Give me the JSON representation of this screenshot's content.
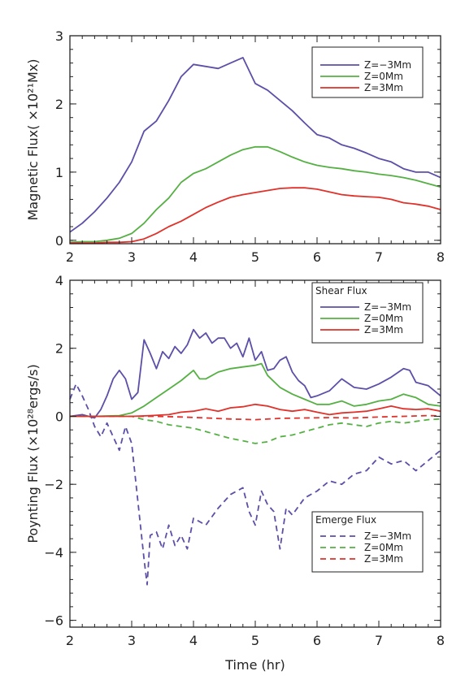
{
  "chart_data": [
    {
      "type": "line",
      "xlabel": "",
      "ylabel": "Magnetic Flux( ×10²¹Mx)",
      "xlim": [
        2,
        8
      ],
      "ylim": [
        -0.05,
        3.0
      ],
      "x_ticks": [
        "2",
        "3",
        "4",
        "5",
        "6",
        "7",
        "8"
      ],
      "y_ticks": [
        "0",
        "1",
        "2",
        "3"
      ],
      "x_tick_values": [
        2,
        3,
        4,
        5,
        6,
        7,
        8
      ],
      "y_tick_values": [
        0,
        1,
        2,
        3
      ],
      "legend": {
        "title": "",
        "placement": "top-right"
      },
      "series": [
        {
          "name": "Z=−3Mm",
          "color": "#5b4fa8",
          "dash": "solid",
          "x": [
            2.0,
            2.2,
            2.4,
            2.6,
            2.8,
            3.0,
            3.2,
            3.4,
            3.6,
            3.8,
            4.0,
            4.2,
            4.4,
            4.6,
            4.8,
            5.0,
            5.2,
            5.4,
            5.6,
            5.8,
            6.0,
            6.2,
            6.4,
            6.6,
            6.8,
            7.0,
            7.2,
            7.4,
            7.6,
            7.8,
            8.0
          ],
          "y": [
            0.12,
            0.25,
            0.42,
            0.62,
            0.85,
            1.15,
            1.6,
            1.75,
            2.05,
            2.4,
            2.58,
            2.55,
            2.52,
            2.6,
            2.68,
            2.3,
            2.2,
            2.05,
            1.9,
            1.72,
            1.55,
            1.5,
            1.4,
            1.35,
            1.28,
            1.2,
            1.15,
            1.05,
            1.0,
            1.0,
            0.92
          ]
        },
        {
          "name": "Z=0Mm",
          "color": "#55b043",
          "dash": "solid",
          "x": [
            2.0,
            2.2,
            2.4,
            2.6,
            2.8,
            3.0,
            3.2,
            3.4,
            3.6,
            3.8,
            4.0,
            4.2,
            4.4,
            4.6,
            4.8,
            5.0,
            5.2,
            5.4,
            5.6,
            5.8,
            6.0,
            6.2,
            6.4,
            6.6,
            6.8,
            7.0,
            7.2,
            7.4,
            7.6,
            7.8,
            8.0
          ],
          "y": [
            -0.03,
            -0.02,
            -0.02,
            0.0,
            0.03,
            0.1,
            0.25,
            0.45,
            0.62,
            0.85,
            0.98,
            1.05,
            1.15,
            1.25,
            1.33,
            1.37,
            1.37,
            1.3,
            1.22,
            1.15,
            1.1,
            1.07,
            1.05,
            1.02,
            1.0,
            0.97,
            0.95,
            0.92,
            0.88,
            0.83,
            0.78
          ]
        },
        {
          "name": "Z=3Mm",
          "color": "#e0312a",
          "dash": "solid",
          "x": [
            2.0,
            2.2,
            2.4,
            2.6,
            2.8,
            3.0,
            3.2,
            3.4,
            3.6,
            3.8,
            4.0,
            4.2,
            4.4,
            4.6,
            4.8,
            5.0,
            5.2,
            5.4,
            5.6,
            5.8,
            6.0,
            6.2,
            6.4,
            6.6,
            6.8,
            7.0,
            7.2,
            7.4,
            7.6,
            7.8,
            8.0
          ],
          "y": [
            -0.04,
            -0.04,
            -0.04,
            -0.03,
            -0.03,
            -0.02,
            0.02,
            0.1,
            0.2,
            0.28,
            0.38,
            0.48,
            0.56,
            0.63,
            0.67,
            0.7,
            0.73,
            0.76,
            0.77,
            0.77,
            0.75,
            0.71,
            0.67,
            0.65,
            0.64,
            0.63,
            0.6,
            0.55,
            0.53,
            0.5,
            0.45
          ]
        }
      ]
    },
    {
      "type": "line",
      "xlabel": "Time (hr)",
      "ylabel": "Poynting Flux (×10²⁸ergs/s)",
      "xlim": [
        2,
        8
      ],
      "ylim": [
        -6.2,
        4.0
      ],
      "x_ticks": [
        "2",
        "3",
        "4",
        "5",
        "6",
        "7",
        "8"
      ],
      "y_ticks": [
        "−6",
        "−4",
        "−2",
        "0",
        "2",
        "4"
      ],
      "x_tick_values": [
        2,
        3,
        4,
        5,
        6,
        7,
        8
      ],
      "y_tick_values": [
        -6,
        -4,
        -2,
        0,
        2,
        4
      ],
      "legends": [
        {
          "title": "Shear Flux",
          "placement": "top-right",
          "series": [
            0,
            1,
            2
          ]
        },
        {
          "title": "Emerge Flux",
          "placement": "bottom-right",
          "series": [
            3,
            4,
            5
          ]
        }
      ],
      "series": [
        {
          "name": "Z=−3Mm",
          "color": "#5b4fa8",
          "dash": "solid",
          "x": [
            2.0,
            2.2,
            2.4,
            2.5,
            2.6,
            2.7,
            2.8,
            2.9,
            3.0,
            3.1,
            3.2,
            3.3,
            3.4,
            3.5,
            3.6,
            3.7,
            3.8,
            3.9,
            4.0,
            4.1,
            4.2,
            4.3,
            4.4,
            4.5,
            4.6,
            4.7,
            4.8,
            4.9,
            5.0,
            5.1,
            5.2,
            5.3,
            5.4,
            5.5,
            5.6,
            5.7,
            5.8,
            5.9,
            6.0,
            6.2,
            6.4,
            6.6,
            6.8,
            7.0,
            7.2,
            7.4,
            7.5,
            7.6,
            7.8,
            8.0
          ],
          "y": [
            0.0,
            0.05,
            -0.05,
            0.2,
            0.6,
            1.1,
            1.35,
            1.1,
            0.5,
            0.7,
            2.25,
            1.85,
            1.4,
            1.9,
            1.7,
            2.05,
            1.85,
            2.1,
            2.55,
            2.3,
            2.45,
            2.15,
            2.3,
            2.3,
            2.0,
            2.15,
            1.75,
            2.3,
            1.65,
            1.9,
            1.35,
            1.4,
            1.65,
            1.75,
            1.3,
            1.05,
            0.9,
            0.55,
            0.6,
            0.75,
            1.1,
            0.85,
            0.8,
            0.95,
            1.15,
            1.4,
            1.35,
            1.0,
            0.9,
            0.6
          ]
        },
        {
          "name": "Z=0Mm",
          "color": "#55b043",
          "dash": "solid",
          "x": [
            2.0,
            2.4,
            2.8,
            3.0,
            3.2,
            3.4,
            3.6,
            3.8,
            4.0,
            4.1,
            4.2,
            4.4,
            4.6,
            4.8,
            5.0,
            5.1,
            5.2,
            5.4,
            5.6,
            5.8,
            6.0,
            6.2,
            6.4,
            6.6,
            6.8,
            7.0,
            7.2,
            7.4,
            7.6,
            7.8,
            8.0
          ],
          "y": [
            0.0,
            0.0,
            0.02,
            0.1,
            0.3,
            0.55,
            0.8,
            1.05,
            1.35,
            1.1,
            1.1,
            1.3,
            1.4,
            1.45,
            1.5,
            1.55,
            1.2,
            0.85,
            0.65,
            0.5,
            0.35,
            0.35,
            0.45,
            0.3,
            0.35,
            0.45,
            0.5,
            0.65,
            0.55,
            0.35,
            0.3
          ]
        },
        {
          "name": "Z=3Mm",
          "color": "#e0312a",
          "dash": "solid",
          "x": [
            2.0,
            2.5,
            3.0,
            3.3,
            3.6,
            3.8,
            4.0,
            4.2,
            4.4,
            4.6,
            4.8,
            5.0,
            5.2,
            5.4,
            5.6,
            5.8,
            6.0,
            6.2,
            6.4,
            6.6,
            6.8,
            7.0,
            7.2,
            7.4,
            7.6,
            7.8,
            8.0
          ],
          "y": [
            0.0,
            0.0,
            0.0,
            0.02,
            0.05,
            0.12,
            0.15,
            0.22,
            0.15,
            0.25,
            0.28,
            0.35,
            0.3,
            0.2,
            0.15,
            0.2,
            0.12,
            0.05,
            0.1,
            0.12,
            0.15,
            0.22,
            0.3,
            0.22,
            0.2,
            0.22,
            0.15
          ]
        },
        {
          "name": "Z=−3Mm",
          "color": "#5b4fa8",
          "dash": "dashed",
          "x": [
            2.0,
            2.1,
            2.2,
            2.3,
            2.4,
            2.5,
            2.6,
            2.7,
            2.8,
            2.9,
            3.0,
            3.1,
            3.2,
            3.25,
            3.3,
            3.4,
            3.5,
            3.6,
            3.7,
            3.8,
            3.9,
            4.0,
            4.2,
            4.4,
            4.6,
            4.8,
            4.9,
            5.0,
            5.1,
            5.2,
            5.3,
            5.4,
            5.5,
            5.6,
            5.8,
            6.0,
            6.2,
            6.4,
            6.6,
            6.8,
            7.0,
            7.2,
            7.4,
            7.6,
            7.8,
            8.0
          ],
          "y": [
            0.5,
            0.95,
            0.6,
            0.2,
            -0.3,
            -0.6,
            -0.2,
            -0.6,
            -1.0,
            -0.3,
            -0.8,
            -2.5,
            -4.2,
            -4.95,
            -3.5,
            -3.4,
            -3.9,
            -3.2,
            -3.8,
            -3.5,
            -3.9,
            -3.0,
            -3.2,
            -2.7,
            -2.3,
            -2.1,
            -2.8,
            -3.2,
            -2.2,
            -2.6,
            -2.8,
            -3.9,
            -2.7,
            -2.9,
            -2.4,
            -2.2,
            -1.9,
            -2.0,
            -1.7,
            -1.6,
            -1.2,
            -1.4,
            -1.3,
            -1.6,
            -1.3,
            -1.0
          ]
        },
        {
          "name": "Z=0Mm",
          "color": "#55b043",
          "dash": "dashed",
          "x": [
            2.0,
            2.5,
            3.0,
            3.2,
            3.4,
            3.6,
            3.8,
            4.0,
            4.2,
            4.4,
            4.6,
            4.8,
            5.0,
            5.2,
            5.4,
            5.6,
            5.8,
            6.0,
            6.2,
            6.4,
            6.6,
            6.8,
            7.0,
            7.2,
            7.4,
            7.6,
            7.8,
            8.0
          ],
          "y": [
            0.0,
            0.0,
            0.0,
            -0.1,
            -0.15,
            -0.25,
            -0.3,
            -0.35,
            -0.45,
            -0.55,
            -0.65,
            -0.72,
            -0.8,
            -0.75,
            -0.6,
            -0.55,
            -0.45,
            -0.35,
            -0.25,
            -0.2,
            -0.25,
            -0.3,
            -0.2,
            -0.15,
            -0.2,
            -0.15,
            -0.1,
            -0.08
          ]
        },
        {
          "name": "Z=3Mm",
          "color": "#e0312a",
          "dash": "dashed",
          "x": [
            2.0,
            2.5,
            3.0,
            3.4,
            3.8,
            4.2,
            4.6,
            5.0,
            5.4,
            5.8,
            6.2,
            6.6,
            7.0,
            7.4,
            7.8,
            8.0
          ],
          "y": [
            0.0,
            0.0,
            0.0,
            0.0,
            -0.02,
            -0.05,
            -0.08,
            -0.1,
            -0.06,
            -0.05,
            -0.04,
            -0.05,
            -0.02,
            0.0,
            0.02,
            0.01
          ]
        }
      ]
    }
  ]
}
